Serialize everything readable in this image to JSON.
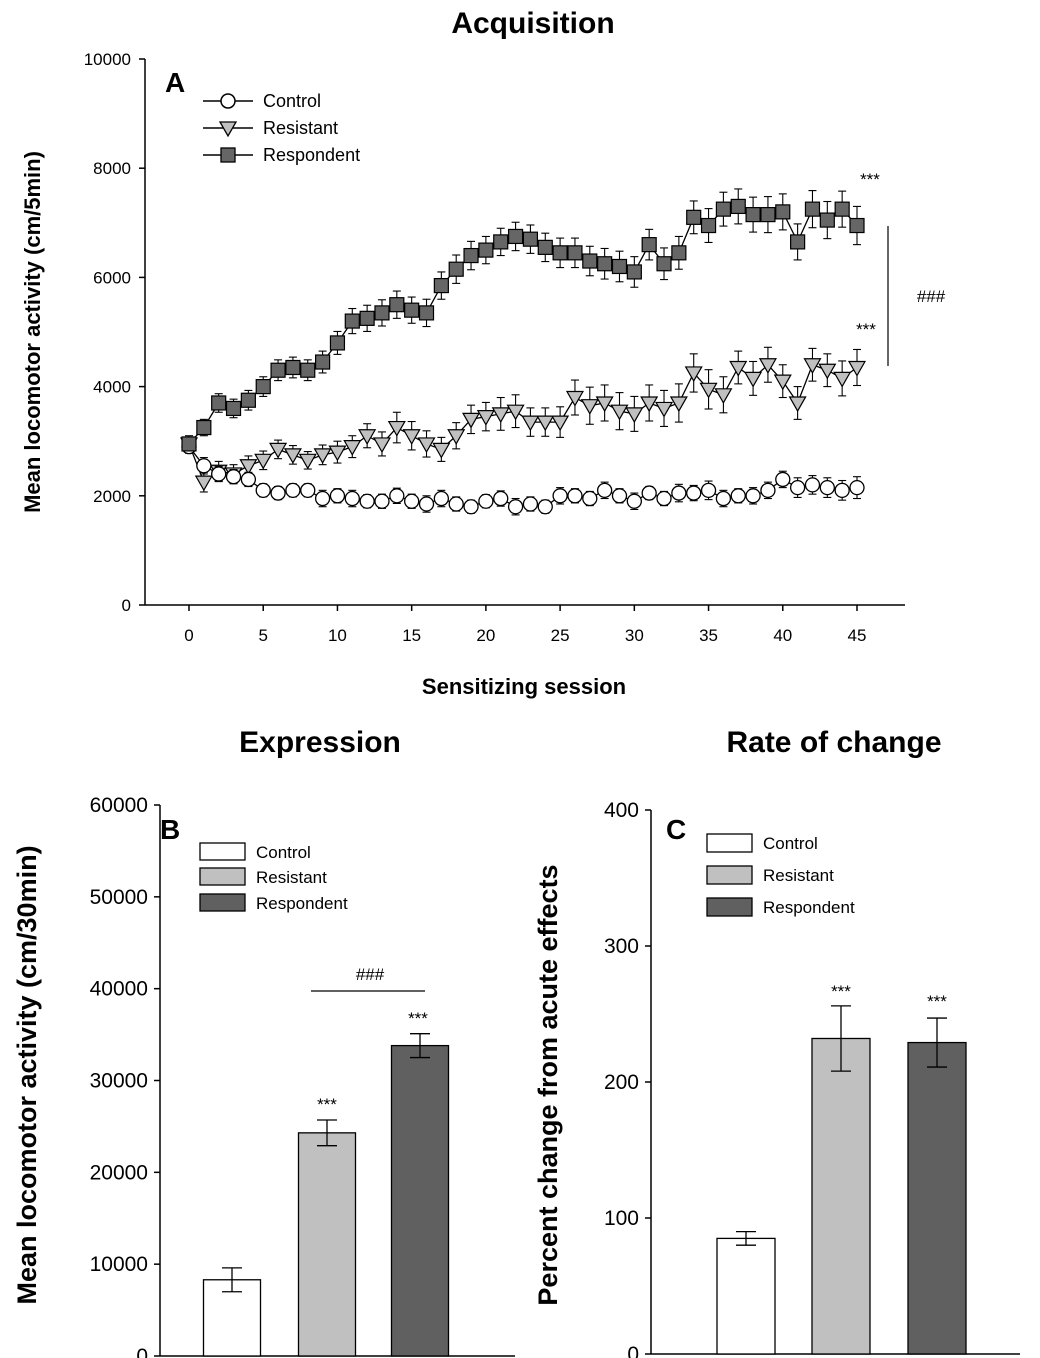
{
  "chart_data": [
    {
      "type": "line",
      "panel": "A",
      "title": "Acquisition",
      "xlabel": "Sensitizing session",
      "ylabel": "Mean locomotor activity (cm/5min)",
      "xlim": [
        -3,
        46.5
      ],
      "ylim": [
        0,
        10000
      ],
      "xticks": [
        0,
        5,
        10,
        15,
        20,
        25,
        30,
        35,
        40,
        45
      ],
      "yticks": [
        0,
        2000,
        4000,
        6000,
        8000,
        10000
      ],
      "legend_position": "top-left",
      "grid": false,
      "x": [
        0,
        1,
        2,
        3,
        4,
        5,
        6,
        7,
        8,
        9,
        10,
        11,
        12,
        13,
        14,
        15,
        16,
        17,
        18,
        19,
        20,
        21,
        22,
        23,
        24,
        25,
        26,
        27,
        28,
        29,
        30,
        31,
        32,
        33,
        34,
        35,
        36,
        37,
        38,
        39,
        40,
        41,
        42,
        43,
        44,
        45
      ],
      "series": [
        {
          "name": "Control",
          "marker": "circle",
          "color": "#ffffff",
          "values": [
            2900,
            2550,
            2400,
            2350,
            2300,
            2100,
            2050,
            2100,
            2100,
            1950,
            2000,
            1950,
            1900,
            1900,
            2000,
            1900,
            1850,
            1950,
            1850,
            1800,
            1900,
            1950,
            1800,
            1850,
            1800,
            2000,
            2000,
            1950,
            2100,
            2000,
            1900,
            2050,
            1950,
            2050,
            2050,
            2100,
            1950,
            2000,
            2000,
            2100,
            2300,
            2150,
            2200,
            2150,
            2100,
            2150
          ],
          "errors": [
            120,
            150,
            140,
            130,
            130,
            120,
            120,
            120,
            120,
            150,
            130,
            150,
            120,
            130,
            140,
            130,
            150,
            150,
            130,
            120,
            120,
            140,
            150,
            130,
            120,
            150,
            130,
            130,
            150,
            130,
            150,
            120,
            130,
            160,
            140,
            170,
            150,
            130,
            150,
            150,
            150,
            180,
            170,
            180,
            180,
            200
          ]
        },
        {
          "name": "Resistant",
          "marker": "triangle-down",
          "color": "#c0c0c0",
          "values": [
            2950,
            2250,
            2450,
            2400,
            2550,
            2650,
            2850,
            2750,
            2650,
            2750,
            2800,
            2900,
            3100,
            2950,
            3250,
            3100,
            2950,
            2850,
            3100,
            3400,
            3450,
            3500,
            3550,
            3350,
            3350,
            3350,
            3800,
            3650,
            3700,
            3550,
            3500,
            3700,
            3600,
            3700,
            4250,
            3950,
            3850,
            4350,
            4150,
            4400,
            4100,
            3700,
            4400,
            4300,
            4150,
            4350
          ],
          "errors": [
            150,
            180,
            180,
            170,
            180,
            170,
            170,
            170,
            160,
            180,
            200,
            200,
            220,
            220,
            280,
            260,
            240,
            220,
            240,
            260,
            260,
            300,
            300,
            260,
            260,
            280,
            320,
            340,
            330,
            340,
            320,
            330,
            330,
            350,
            350,
            360,
            330,
            300,
            310,
            320,
            300,
            300,
            300,
            300,
            320,
            330
          ]
        },
        {
          "name": "Respondent",
          "marker": "square",
          "color": "#666666",
          "values": [
            2950,
            3250,
            3700,
            3600,
            3750,
            4000,
            4300,
            4350,
            4300,
            4450,
            4800,
            5200,
            5250,
            5350,
            5500,
            5400,
            5350,
            5850,
            6150,
            6400,
            6500,
            6650,
            6750,
            6700,
            6550,
            6450,
            6450,
            6300,
            6250,
            6200,
            6100,
            6600,
            6250,
            6450,
            7100,
            6950,
            7250,
            7300,
            7150,
            7150,
            7200,
            6650,
            7250,
            7050,
            7250,
            6950
          ],
          "errors": [
            120,
            150,
            170,
            170,
            180,
            180,
            190,
            190,
            190,
            200,
            210,
            230,
            240,
            240,
            250,
            240,
            250,
            250,
            260,
            260,
            250,
            250,
            260,
            260,
            260,
            270,
            270,
            270,
            280,
            280,
            280,
            280,
            290,
            300,
            300,
            310,
            310,
            320,
            320,
            330,
            330,
            330,
            340,
            340,
            330,
            350
          ]
        }
      ],
      "annotations": [
        {
          "text": "***",
          "x": 45,
          "y": 7800,
          "series": "Respondent"
        },
        {
          "text": "***",
          "x": 45,
          "y": 5050,
          "series": "Resistant"
        },
        {
          "text": "###",
          "between": [
            "Respondent",
            "Resistant"
          ]
        }
      ]
    },
    {
      "type": "bar",
      "panel": "B",
      "title": "Expression",
      "ylabel": "Mean locomotor activity (cm/30min)",
      "ylim": [
        0,
        60000
      ],
      "yticks": [
        0,
        10000,
        20000,
        30000,
        40000,
        50000,
        60000
      ],
      "legend_position": "top-left",
      "categories": [
        "Control",
        "Resistant",
        "Respondent"
      ],
      "values": [
        8300,
        24300,
        33800
      ],
      "errors": [
        1300,
        1400,
        1300
      ],
      "colors": [
        "#ffffff",
        "#c0c0c0",
        "#606060"
      ],
      "annotations": [
        {
          "text": "***",
          "category": "Resistant"
        },
        {
          "text": "***",
          "category": "Respondent"
        },
        {
          "text": "###",
          "between": [
            "Resistant",
            "Respondent"
          ],
          "y": 41500
        }
      ]
    },
    {
      "type": "bar",
      "panel": "C",
      "title": "Rate of change",
      "ylabel": "Percent change from acute effects",
      "ylim": [
        0,
        400
      ],
      "yticks": [
        0,
        100,
        200,
        300,
        400
      ],
      "legend_position": "top-left",
      "categories": [
        "Control",
        "Resistant",
        "Respondent"
      ],
      "values": [
        85,
        232,
        229
      ],
      "errors": [
        5,
        24,
        18
      ],
      "colors": [
        "#ffffff",
        "#c0c0c0",
        "#606060"
      ],
      "annotations": [
        {
          "text": "***",
          "category": "Resistant"
        },
        {
          "text": "***",
          "category": "Respondent"
        }
      ]
    }
  ]
}
